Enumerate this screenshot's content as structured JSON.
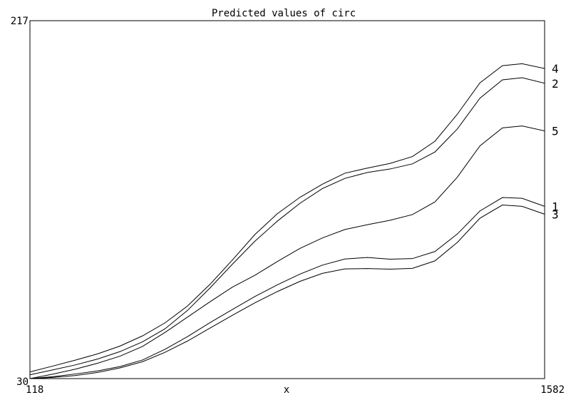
{
  "chart_data": {
    "type": "line",
    "title": "Predicted values of circ",
    "xlabel": "x",
    "ylabel": "",
    "xlim": [
      118,
      1582
    ],
    "ylim": [
      30,
      217
    ],
    "x_ticks": [
      "118",
      "1582"
    ],
    "y_ticks": [
      "30",
      "217"
    ],
    "grid": false,
    "x": [
      118,
      182,
      246,
      310,
      374,
      438,
      502,
      566,
      630,
      694,
      758,
      822,
      886,
      950,
      1014,
      1078,
      1142,
      1206,
      1270,
      1334,
      1398,
      1462,
      1518,
      1582
    ],
    "series": [
      {
        "name": "1",
        "values": [
          30.0,
          31.0,
          32.4,
          34.0,
          36.3,
          39.7,
          45.3,
          51.9,
          59.2,
          66.1,
          72.9,
          79.0,
          84.6,
          89.3,
          92.5,
          93.3,
          92.4,
          92.7,
          96.4,
          105.6,
          117.6,
          124.6,
          124.2,
          120.0
        ]
      },
      {
        "name": "2",
        "values": [
          32.0,
          34.5,
          37.1,
          40.2,
          44.1,
          49.2,
          56.0,
          65.6,
          77.3,
          89.8,
          101.8,
          112.3,
          121.6,
          129.3,
          134.6,
          137.7,
          139.5,
          142.2,
          148.4,
          160.5,
          176.5,
          186.1,
          187.2,
          184.3
        ]
      },
      {
        "name": "3",
        "values": [
          30.0,
          30.6,
          31.6,
          33.2,
          35.6,
          38.8,
          43.7,
          49.6,
          56.4,
          63.1,
          69.6,
          75.5,
          80.8,
          85.0,
          87.3,
          87.5,
          87.2,
          87.6,
          91.5,
          101.2,
          113.8,
          120.7,
          120.0,
          115.9
        ]
      },
      {
        "name": "4",
        "values": [
          33.5,
          36.5,
          39.6,
          42.9,
          47.0,
          52.3,
          59.1,
          67.9,
          79.2,
          92.0,
          105.3,
          116.2,
          124.7,
          131.6,
          137.3,
          140.0,
          142.4,
          146.0,
          154.0,
          168.2,
          184.5,
          193.5,
          194.5,
          192.0
        ]
      },
      {
        "name": "5",
        "values": [
          30.0,
          32.3,
          34.9,
          38.0,
          41.7,
          46.8,
          54.1,
          62.1,
          70.1,
          77.8,
          84.0,
          91.2,
          98.0,
          103.5,
          107.9,
          110.4,
          112.7,
          115.7,
          122.3,
          135.3,
          151.6,
          161.0,
          162.0,
          159.4
        ]
      }
    ]
  }
}
